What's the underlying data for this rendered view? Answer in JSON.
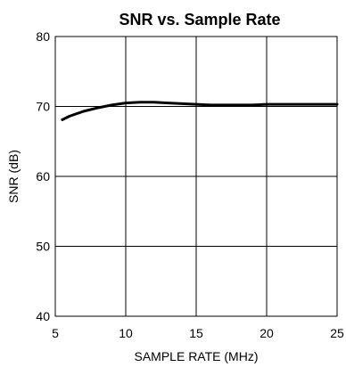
{
  "chart_data": {
    "type": "line",
    "title": "SNR vs. Sample Rate",
    "xlabel": "SAMPLE RATE (MHz)",
    "ylabel": "SNR (dB)",
    "xlim": [
      5,
      25
    ],
    "ylim": [
      40,
      80
    ],
    "xticks": [
      "5",
      "10",
      "15",
      "20",
      "25"
    ],
    "yticks": [
      "40",
      "50",
      "60",
      "70",
      "80"
    ],
    "grid": true,
    "legend": "none",
    "series": [
      {
        "color": "#000000",
        "x": [
          5.5,
          6,
          7,
          8,
          9,
          10,
          11,
          12,
          13,
          14,
          15,
          16,
          17,
          18,
          19,
          20,
          21,
          22,
          23,
          24,
          25
        ],
        "y": [
          68.1,
          68.6,
          69.3,
          69.8,
          70.2,
          70.5,
          70.6,
          70.6,
          70.5,
          70.4,
          70.3,
          70.2,
          70.2,
          70.2,
          70.2,
          70.3,
          70.3,
          70.3,
          70.3,
          70.3,
          70.3
        ]
      }
    ]
  }
}
